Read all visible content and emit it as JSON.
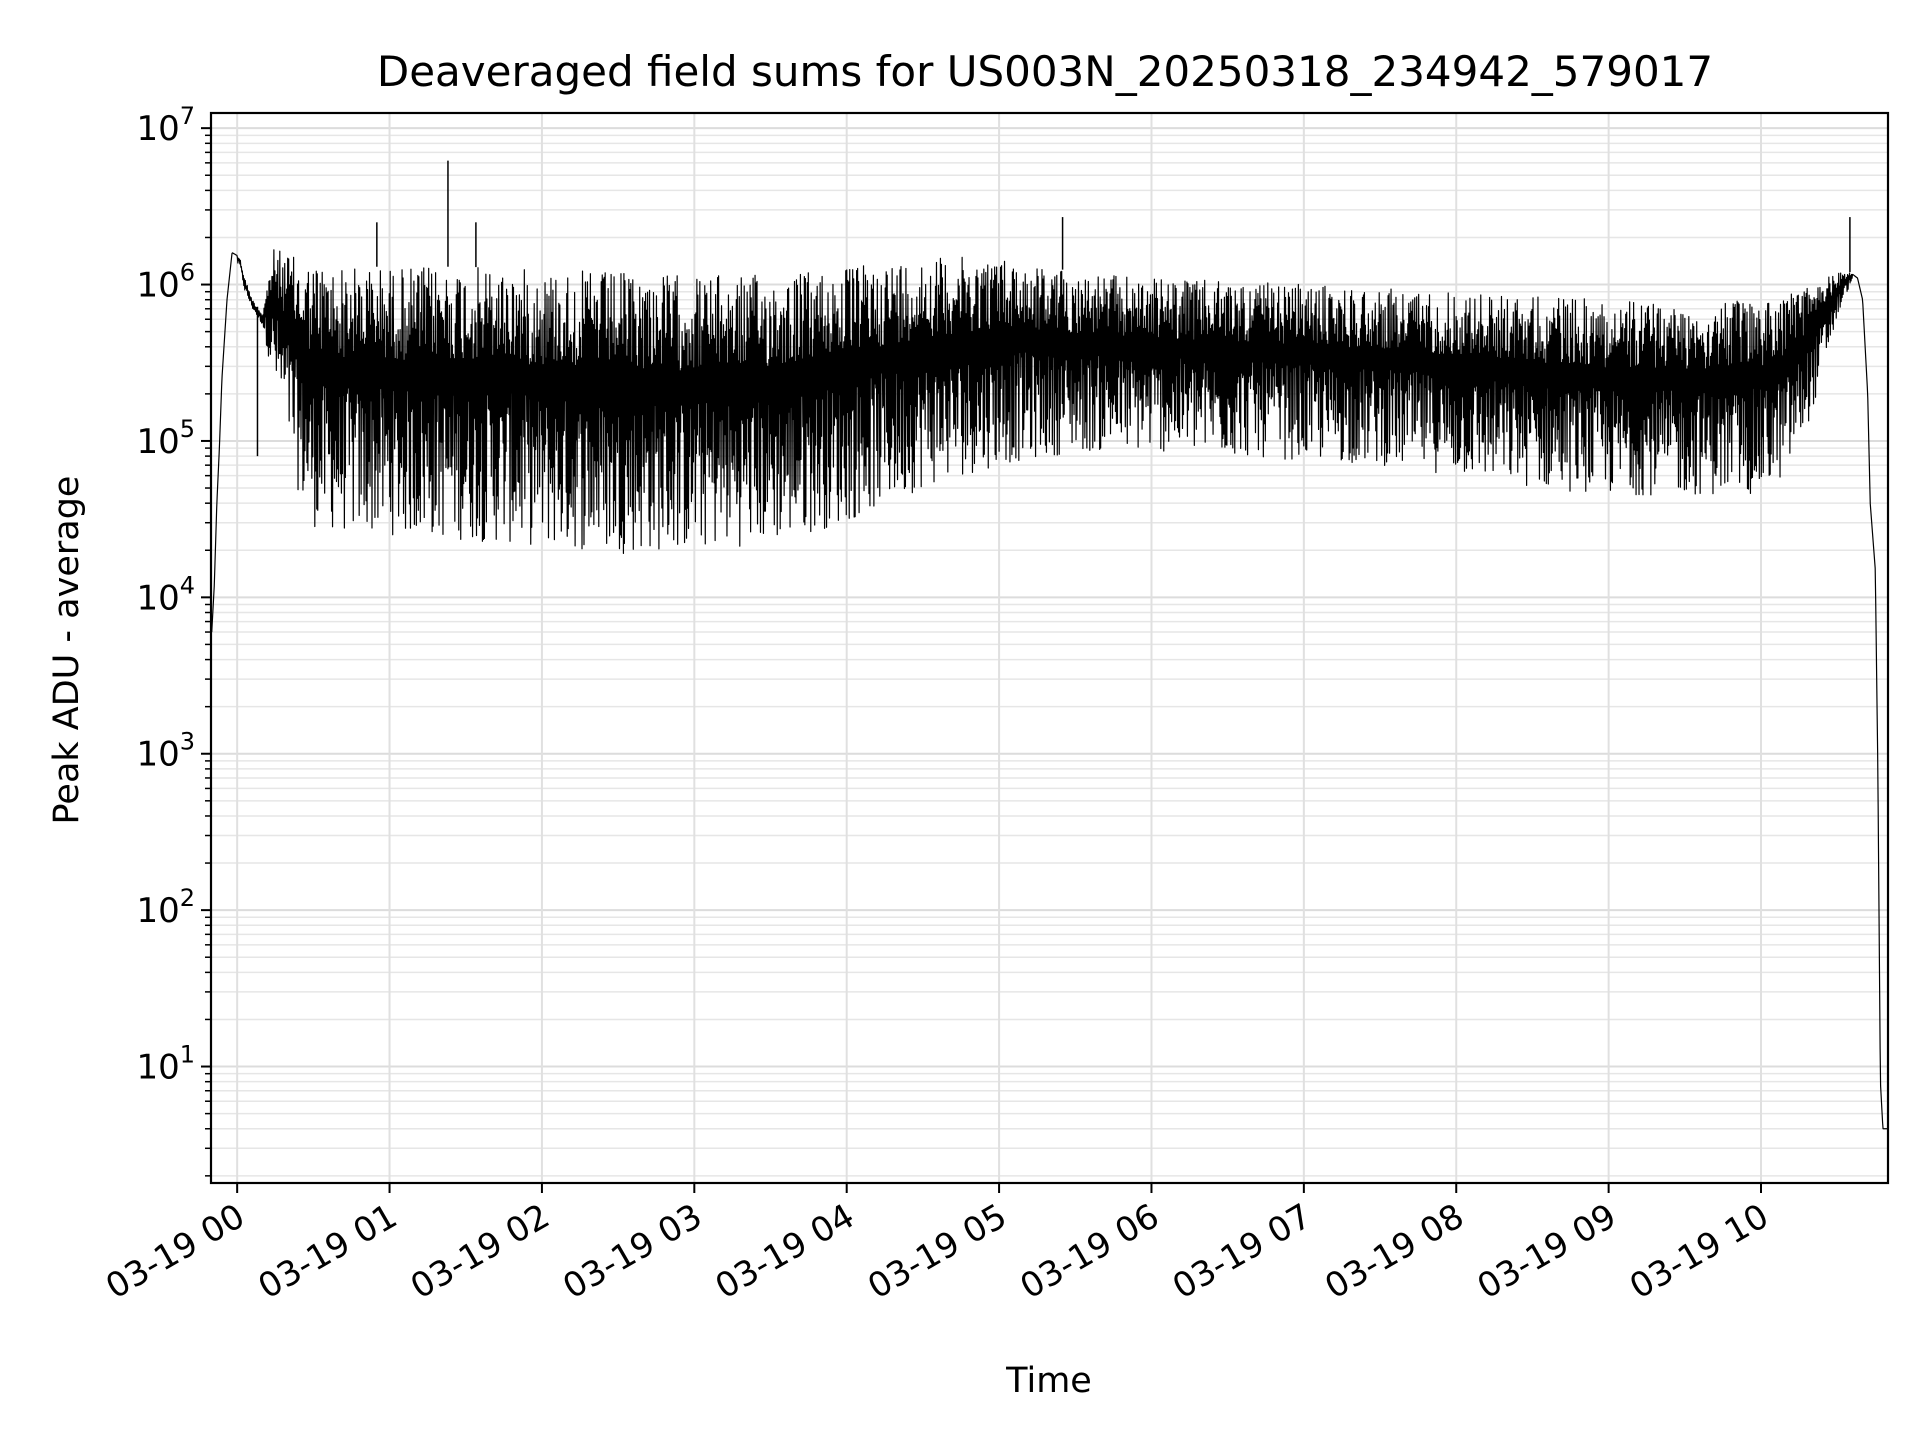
{
  "chart_data": {
    "type": "line",
    "title": "Deaveraged field sums for US003N_20250318_234942_579017",
    "xlabel": "Time",
    "ylabel": "Peak ADU - average",
    "yscale": "log",
    "ylim": [
      1.8,
      12500000
    ],
    "xlim": [
      "2025-03-18 23:49:42",
      "2025-03-19 10:50:00"
    ],
    "grid": true,
    "series_color": "#000000",
    "x_ticks": [
      "03-19 00",
      "03-19 01",
      "03-19 02",
      "03-19 03",
      "03-19 04",
      "03-19 05",
      "03-19 06",
      "03-19 07",
      "03-19 08",
      "03-19 09",
      "03-19 10"
    ],
    "x_tick_times": [
      "2025-03-19 00:00",
      "2025-03-19 01:00",
      "2025-03-19 02:00",
      "2025-03-19 03:00",
      "2025-03-19 04:00",
      "2025-03-19 05:00",
      "2025-03-19 06:00",
      "2025-03-19 07:00",
      "2025-03-19 08:00",
      "2025-03-19 09:00",
      "2025-03-19 10:00"
    ],
    "y_ticks": [
      {
        "base": "10",
        "exp": "1",
        "value": 10
      },
      {
        "base": "10",
        "exp": "2",
        "value": 100
      },
      {
        "base": "10",
        "exp": "3",
        "value": 1000
      },
      {
        "base": "10",
        "exp": "4",
        "value": 10000
      },
      {
        "base": "10",
        "exp": "5",
        "value": 100000
      },
      {
        "base": "10",
        "exp": "6",
        "value": 1000000
      },
      {
        "base": "10",
        "exp": "7",
        "value": 10000000
      }
    ],
    "series": [
      {
        "x": [
          "2025-03-18 23:50",
          "2025-03-18 23:51",
          "2025-03-18 23:52",
          "2025-03-18 23:53",
          "2025-03-18 23:54",
          "2025-03-18 23:56",
          "2025-03-18 23:58",
          "2025-03-19 00:01",
          "2025-03-19 00:03",
          "2025-03-19 00:06",
          "2025-03-19 00:10",
          "2025-03-19 00:14",
          "2025-03-19 00:20",
          "2025-03-19 00:25",
          "2025-03-19 00:30",
          "2025-03-19 00:40",
          "2025-03-19 01:00",
          "2025-03-19 01:30",
          "2025-03-19 02:00",
          "2025-03-19 02:30",
          "2025-03-19 03:00",
          "2025-03-19 03:30",
          "2025-03-19 04:00",
          "2025-03-19 04:30",
          "2025-03-19 05:00",
          "2025-03-19 05:30",
          "2025-03-19 06:00",
          "2025-03-19 06:30",
          "2025-03-19 07:00",
          "2025-03-19 07:30",
          "2025-03-19 08:00",
          "2025-03-19 08:30",
          "2025-03-19 09:00",
          "2025-03-19 09:30",
          "2025-03-19 10:00",
          "2025-03-19 10:10",
          "2025-03-19 10:20",
          "2025-03-19 10:30",
          "2025-03-19 10:35",
          "2025-03-19 10:38",
          "2025-03-19 10:40",
          "2025-03-19 10:42",
          "2025-03-19 10:43",
          "2025-03-19 10:45",
          "2025-03-19 10:46",
          "2025-03-19 10:47",
          "2025-03-19 10:48",
          "2025-03-19 10:49",
          "2025-03-19 10:50"
        ],
        "low": [
          6000,
          12000,
          40000,
          90000,
          250000,
          800000,
          1500000,
          1300000,
          900000,
          700000,
          550000,
          250000,
          100000,
          40000,
          28000,
          26000,
          25000,
          23000,
          21000,
          19000,
          20000,
          22000,
          30000,
          50000,
          70000,
          85000,
          85000,
          80000,
          75000,
          70000,
          60000,
          50000,
          45000,
          45000,
          45000,
          60000,
          150000,
          600000,
          1000000,
          1100000,
          800000,
          200000,
          40000,
          15000,
          800,
          8,
          4,
          4,
          4
        ],
        "high": [
          6000,
          12000,
          40000,
          90000,
          250000,
          800000,
          1600000,
          1500000,
          1100000,
          800000,
          650000,
          1700000,
          1600000,
          1400000,
          1400000,
          1300000,
          1300000,
          1300000,
          1250000,
          1200000,
          1150000,
          1150000,
          1300000,
          1500000,
          1500000,
          1200000,
          1100000,
          1050000,
          1000000,
          950000,
          900000,
          850000,
          800000,
          750000,
          800000,
          900000,
          1000000,
          1200000,
          1200000,
          1100000,
          800000,
          200000,
          40000,
          15000,
          800,
          8,
          4,
          4,
          4
        ]
      }
    ],
    "spikes": [
      {
        "x": "2025-03-19 00:55",
        "value": 2500000
      },
      {
        "x": "2025-03-19 01:23",
        "value": 6200000
      },
      {
        "x": "2025-03-19 01:34",
        "value": 2500000
      },
      {
        "x": "2025-03-19 05:25",
        "value": 2700000
      },
      {
        "x": "2025-03-19 10:35",
        "value": 2700000
      },
      {
        "x": "2025-03-19 00:08",
        "value": 80000
      }
    ]
  }
}
